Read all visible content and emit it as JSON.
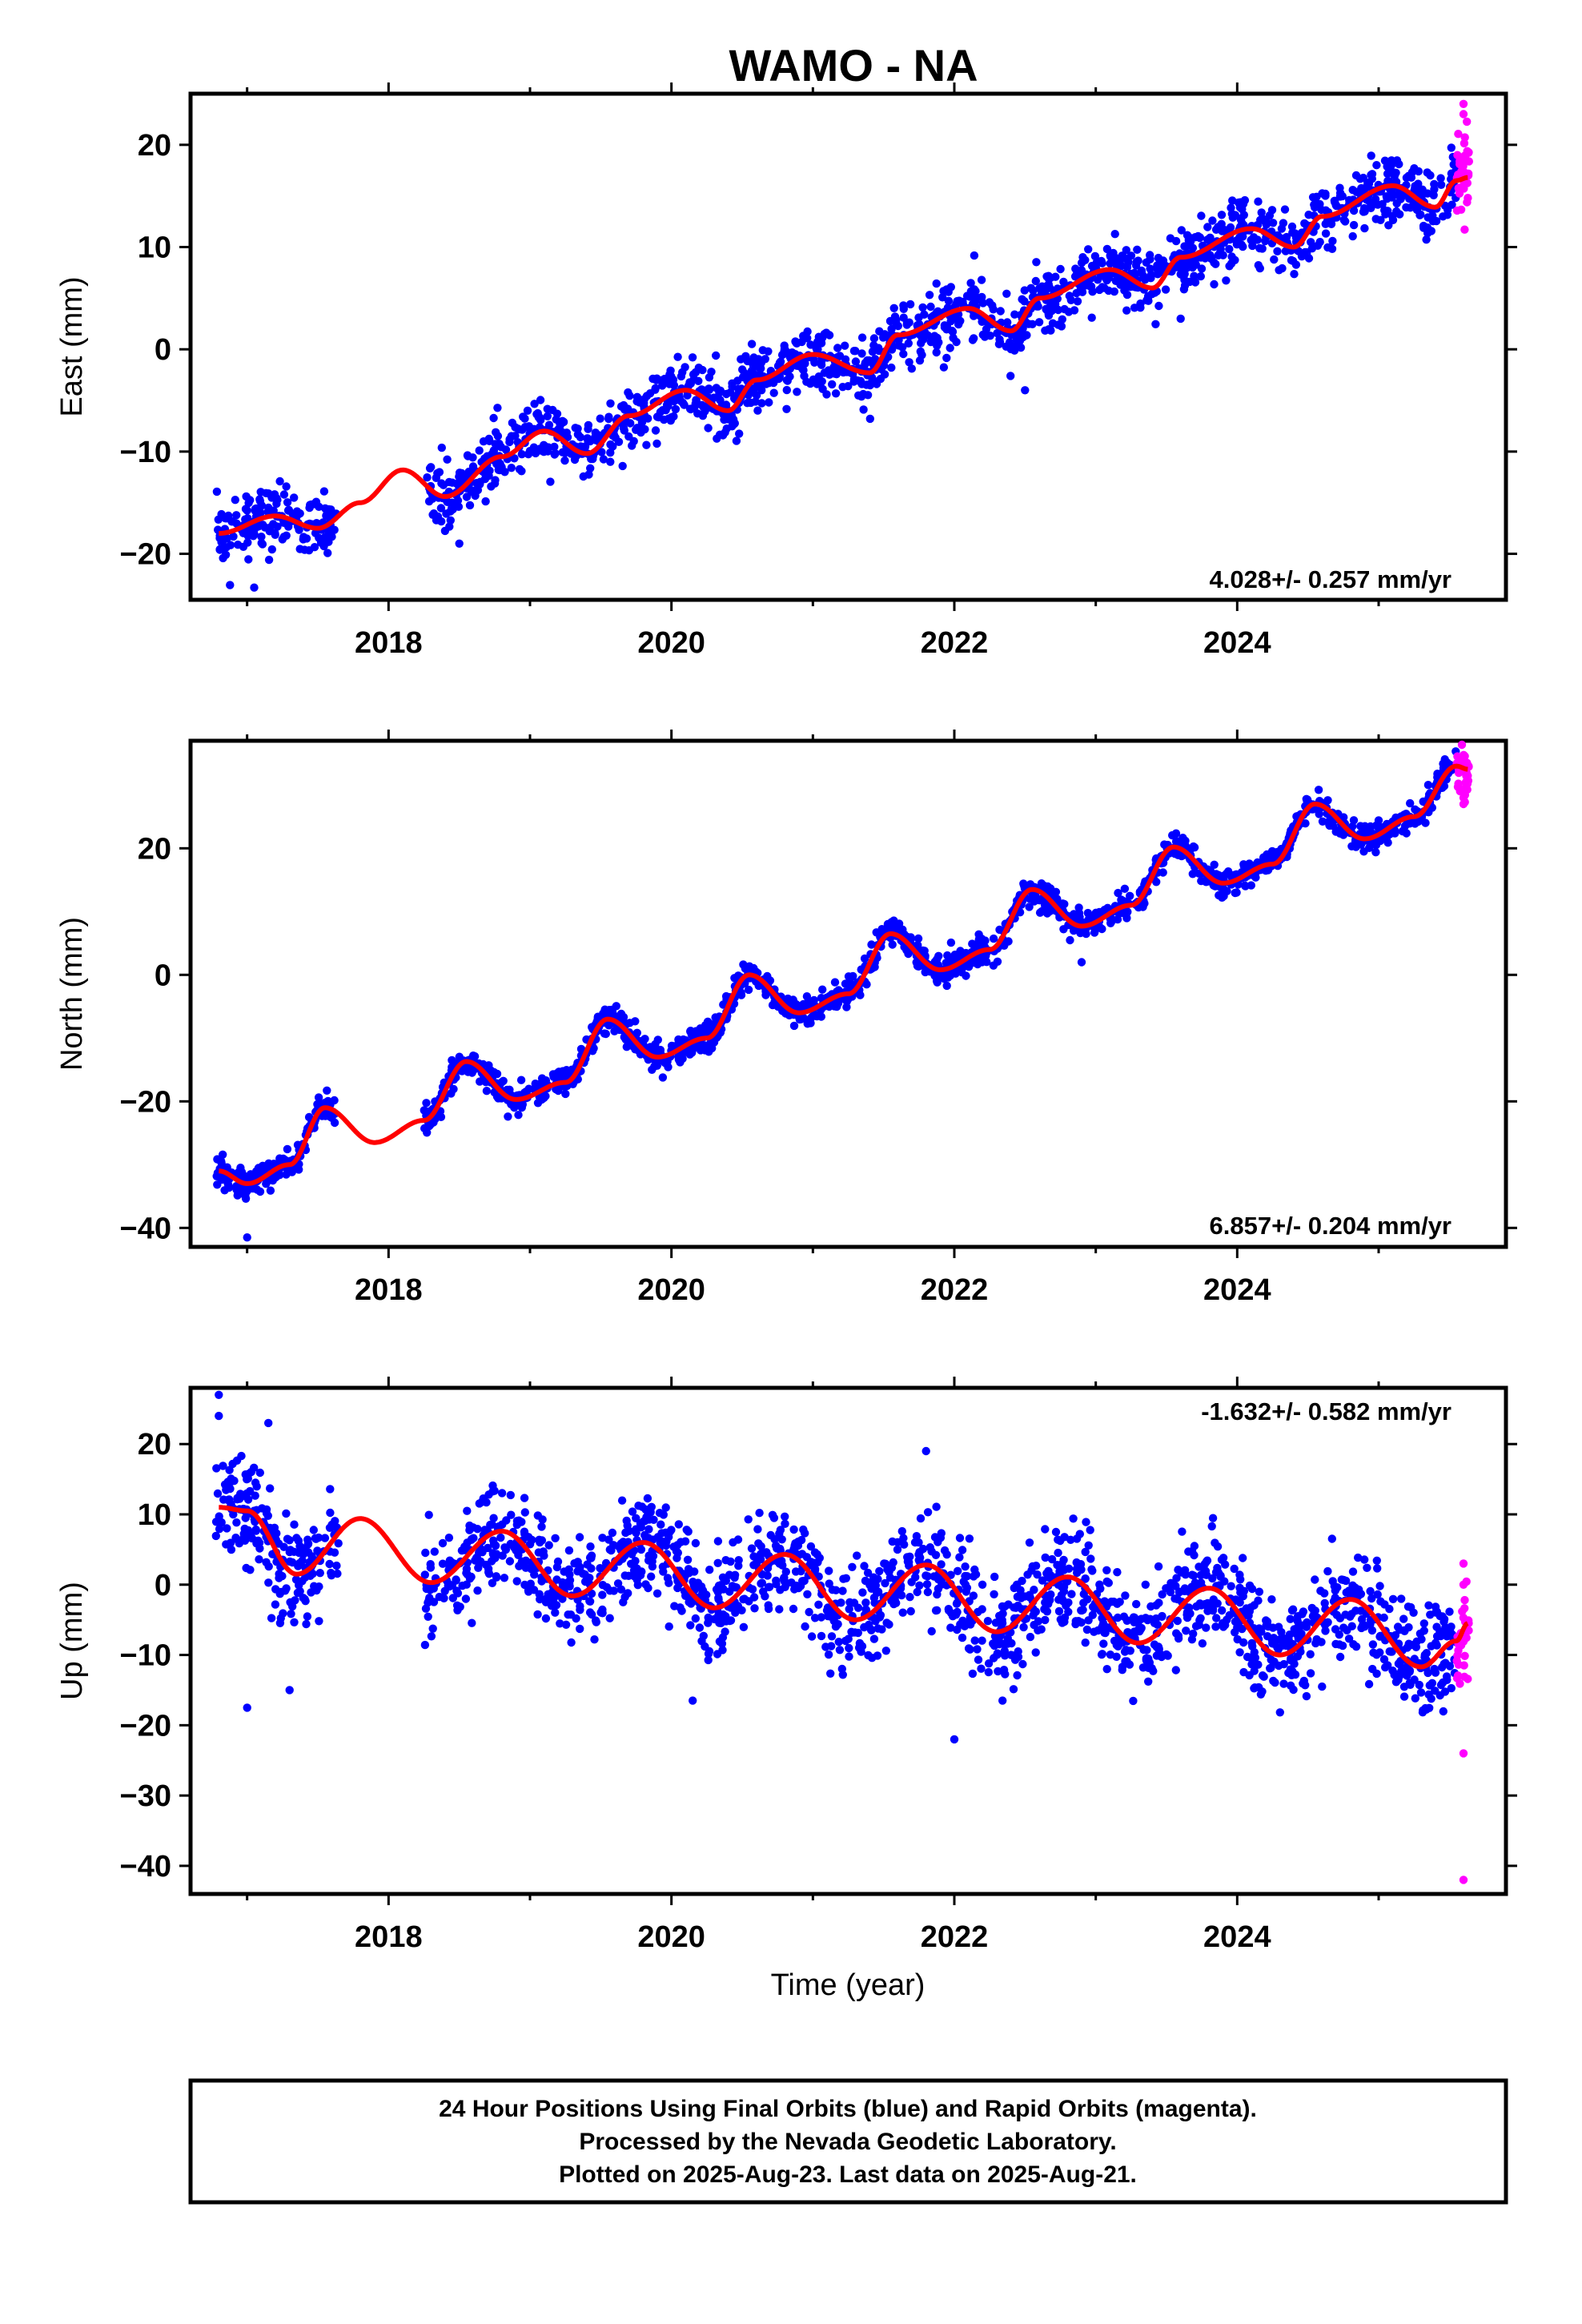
{
  "title": "WAMO - NA",
  "colors": {
    "final": "#0000ff",
    "rapid": "#ff00ff",
    "model": "#ff0000",
    "frame": "#000000"
  },
  "chart_data": [
    {
      "type": "scatter",
      "panel": "east",
      "ylabel": "East (mm)",
      "xlabel": "",
      "xlim": [
        2016.6,
        2025.9
      ],
      "ylim": [
        -24.5,
        25
      ],
      "xticks": [
        2018,
        2020,
        2022,
        2024
      ],
      "xticks_minor": [
        2017,
        2019,
        2021,
        2023,
        2025
      ],
      "yticks": [
        -20,
        -10,
        0,
        10,
        20
      ],
      "rate_text": "4.028+/- 0.257 mm/yr",
      "rate_position": "bottom-right",
      "trend": {
        "anchors": [
          [
            2016.8,
            -18
          ],
          [
            2017.2,
            -16.3
          ],
          [
            2017.5,
            -17.5
          ],
          [
            2017.8,
            -15
          ],
          [
            2018.1,
            -11.8
          ],
          [
            2018.4,
            -14.4
          ],
          [
            2018.8,
            -10.5
          ],
          [
            2019.1,
            -8
          ],
          [
            2019.4,
            -10.2
          ],
          [
            2019.7,
            -6.5
          ],
          [
            2020.1,
            -4
          ],
          [
            2020.4,
            -6
          ],
          [
            2020.6,
            -3
          ],
          [
            2021.0,
            -0.5
          ],
          [
            2021.4,
            -2.3
          ],
          [
            2021.6,
            1.4
          ],
          [
            2022.1,
            4
          ],
          [
            2022.4,
            1.8
          ],
          [
            2022.6,
            5
          ],
          [
            2023.1,
            7.8
          ],
          [
            2023.4,
            6
          ],
          [
            2023.6,
            9
          ],
          [
            2024.1,
            11.8
          ],
          [
            2024.4,
            10
          ],
          [
            2024.6,
            13
          ],
          [
            2025.1,
            16
          ],
          [
            2025.4,
            13.9
          ],
          [
            2025.55,
            16.5
          ],
          [
            2025.63,
            16.8
          ]
        ],
        "amp": 0.4
      },
      "series": [
        {
          "role": "final",
          "from": 2016.78,
          "to": 2025.55,
          "gaps": [
            [
              2017.65,
              2018.25
            ]
          ],
          "noise": 1.5,
          "count": 1800,
          "outliers": [
            [
              2017.05,
              -23.3
            ],
            [
              2018.5,
              -19
            ],
            [
              2022.5,
              -4
            ],
            [
              2023.6,
              3
            ]
          ]
        },
        {
          "role": "rapid",
          "from": 2025.55,
          "to": 2025.64,
          "noise": 2.5,
          "count": 40,
          "outliers": [
            [
              2025.6,
              24
            ],
            [
              2025.6,
              23
            ]
          ]
        }
      ]
    },
    {
      "type": "scatter",
      "panel": "north",
      "ylabel": "North (mm)",
      "xlabel": "",
      "xlim": [
        2016.6,
        2025.9
      ],
      "ylim": [
        -43,
        37
      ],
      "xticks": [
        2018,
        2020,
        2022,
        2024
      ],
      "xticks_minor": [
        2017,
        2019,
        2021,
        2023,
        2025
      ],
      "yticks": [
        -40,
        -20,
        0,
        20
      ],
      "rate_text": "6.857+/- 0.204 mm/yr",
      "rate_position": "bottom-right",
      "trend": {
        "anchors": [
          [
            2016.8,
            -31
          ],
          [
            2017.0,
            -33
          ],
          [
            2017.3,
            -30
          ],
          [
            2017.55,
            -21
          ],
          [
            2017.9,
            -26.5
          ],
          [
            2018.25,
            -23
          ],
          [
            2018.55,
            -13.7
          ],
          [
            2018.9,
            -19.7
          ],
          [
            2019.25,
            -17
          ],
          [
            2019.55,
            -7
          ],
          [
            2019.9,
            -13
          ],
          [
            2020.25,
            -10
          ],
          [
            2020.55,
            0
          ],
          [
            2020.9,
            -6
          ],
          [
            2021.25,
            -3
          ],
          [
            2021.55,
            6.5
          ],
          [
            2021.9,
            0.8
          ],
          [
            2022.25,
            4
          ],
          [
            2022.55,
            13.5
          ],
          [
            2022.9,
            7.7
          ],
          [
            2023.25,
            11
          ],
          [
            2023.55,
            20.2
          ],
          [
            2023.9,
            14.5
          ],
          [
            2024.25,
            17.5
          ],
          [
            2024.55,
            27
          ],
          [
            2024.9,
            21.5
          ],
          [
            2025.25,
            25
          ],
          [
            2025.55,
            33
          ],
          [
            2025.63,
            32.5
          ]
        ],
        "amp": 0.3
      },
      "series": [
        {
          "role": "final",
          "from": 2016.78,
          "to": 2025.55,
          "gaps": [
            [
              2017.65,
              2018.25
            ]
          ],
          "noise": 1.1,
          "count": 1800,
          "outliers": [
            [
              2017.0,
              -41.5
            ],
            [
              2022.9,
              2
            ]
          ]
        },
        {
          "role": "rapid",
          "from": 2025.55,
          "to": 2025.64,
          "noise": 2.2,
          "count": 40,
          "outliers": [
            [
              2025.6,
              27
            ],
            [
              2025.6,
              28
            ]
          ]
        }
      ]
    },
    {
      "type": "scatter",
      "panel": "up",
      "ylabel": "Up (mm)",
      "xlabel": "Time (year)",
      "xlim": [
        2016.6,
        2025.9
      ],
      "ylim": [
        -44,
        28
      ],
      "xticks": [
        2018,
        2020,
        2022,
        2024
      ],
      "xticks_minor": [
        2017,
        2019,
        2021,
        2023,
        2025
      ],
      "yticks": [
        -40,
        -30,
        -20,
        -10,
        0,
        10,
        20
      ],
      "rate_text": "-1.632+/- 0.582 mm/yr",
      "rate_position": "top-right",
      "trend": {
        "anchors": [
          [
            2016.8,
            11
          ],
          [
            2017.0,
            10.5
          ],
          [
            2017.35,
            1.5
          ],
          [
            2017.8,
            9.4
          ],
          [
            2018.3,
            0.3
          ],
          [
            2018.8,
            7.6
          ],
          [
            2019.3,
            -1.6
          ],
          [
            2019.8,
            6
          ],
          [
            2020.3,
            -3.3
          ],
          [
            2020.8,
            4.3
          ],
          [
            2021.3,
            -5
          ],
          [
            2021.8,
            2.8
          ],
          [
            2022.3,
            -6.7
          ],
          [
            2022.8,
            1.1
          ],
          [
            2023.3,
            -8.3
          ],
          [
            2023.8,
            -0.5
          ],
          [
            2024.3,
            -10
          ],
          [
            2024.8,
            -2.1
          ],
          [
            2025.3,
            -11.7
          ],
          [
            2025.55,
            -8
          ],
          [
            2025.63,
            -5.5
          ]
        ],
        "amp": 0.5
      },
      "series": [
        {
          "role": "final",
          "from": 2016.78,
          "to": 2025.55,
          "gaps": [
            [
              2017.65,
              2018.25
            ]
          ],
          "noise": 3.6,
          "count": 2000,
          "outliers": [
            [
              2016.8,
              27
            ],
            [
              2017.15,
              23
            ],
            [
              2017.0,
              -17.5
            ],
            [
              2017.3,
              -15
            ],
            [
              2020.15,
              -16.5
            ],
            [
              2022.0,
              -22
            ],
            [
              2021.8,
              19
            ],
            [
              2016.8,
              24
            ],
            [
              2024.6,
              -14.5
            ]
          ]
        },
        {
          "role": "rapid",
          "from": 2025.55,
          "to": 2025.64,
          "noise": 4,
          "count": 30,
          "outliers": [
            [
              2025.6,
              -42
            ],
            [
              2025.6,
              -24
            ],
            [
              2025.6,
              3
            ],
            [
              2025.6,
              0
            ]
          ]
        }
      ]
    }
  ],
  "caption": {
    "lines": [
      "24 Hour Positions Using Final Orbits (blue) and Rapid Orbits (magenta).",
      "Processed by the Nevada Geodetic Laboratory.",
      "Plotted on 2025-Aug-23. Last data on 2025-Aug-21."
    ]
  }
}
